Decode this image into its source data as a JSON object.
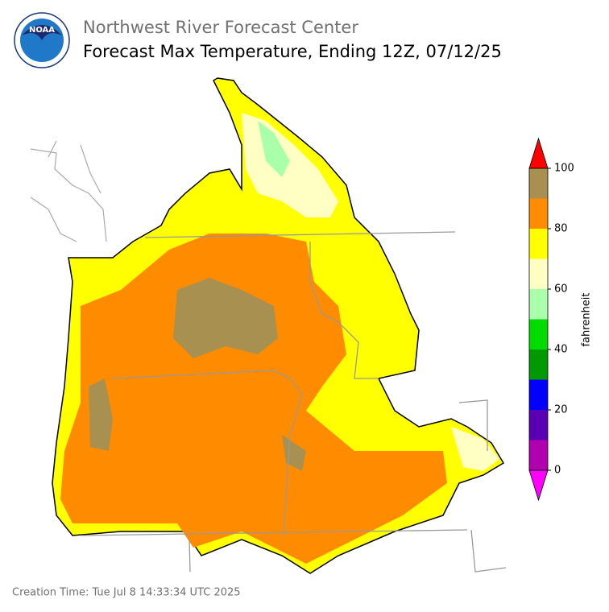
{
  "header": {
    "organization": "Northwest River Forecast Center",
    "title": "Forecast Max Temperature, Ending 12Z, 07/12/25",
    "logo_text": "NOAA"
  },
  "colorbar": {
    "label": "fahrenheit",
    "bounds": [
      0,
      10,
      20,
      30,
      40,
      50,
      60,
      70,
      80,
      90,
      100
    ],
    "colors": [
      "#b000b0",
      "#5a00b4",
      "#0000ff",
      "#009a00",
      "#00dc00",
      "#aaffaa",
      "#ffffc4",
      "#ffff00",
      "#ff8c00",
      "#a89050"
    ],
    "under_color": "#ff00ff",
    "over_color": "#ff0000",
    "ticks": [
      0,
      20,
      40,
      60,
      80,
      100
    ]
  },
  "footer": {
    "creation_time": "Creation Time: Tue Jul 8 14:33:34 UTC 2025"
  }
}
